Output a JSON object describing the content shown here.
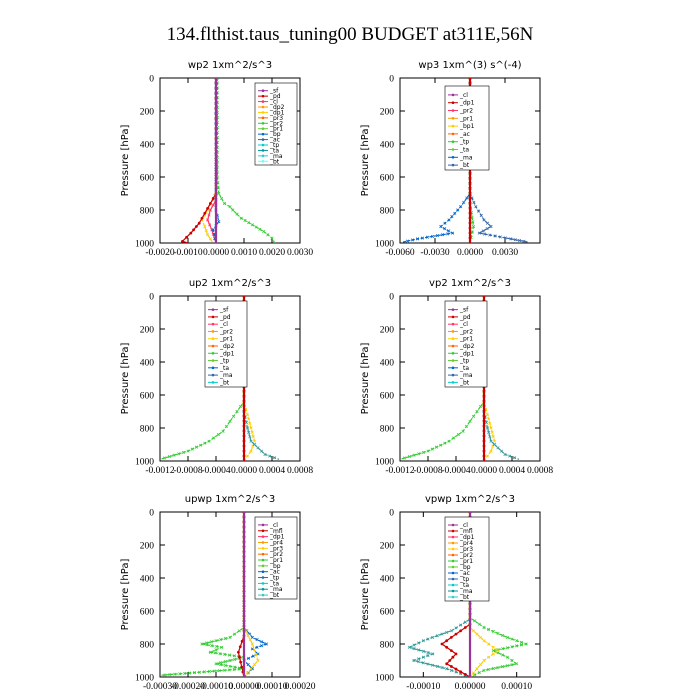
{
  "figure_title": "134.flthist.taus_tuning00  BUDGET at311E,56N",
  "chart_data": [
    {
      "type": "line",
      "title": "wp2   1xm^2/s^3",
      "ylabel": "Pressure  [hPa]",
      "xlim": [
        -0.002,
        0.003
      ],
      "ylim": [
        1000,
        0
      ],
      "x_ticks": [
        "-0.0020",
        "-0.0010",
        "0.0000",
        "0.0010",
        "0.0020",
        "0.0030"
      ],
      "y_ticks": [
        "0",
        "200",
        "400",
        "600",
        "800",
        "1000"
      ],
      "legend": [
        "_sf",
        "_pd",
        "_cl",
        "_dp2",
        "_dp1",
        "_pr3",
        "_pr2",
        "_pr1",
        "_bp",
        "_ac",
        "_tp",
        "_ta",
        "_ma",
        "_bt"
      ],
      "legend_position": "top-right",
      "series": [
        {
          "name": "_bp",
          "color": "#33cc33",
          "marker": "x",
          "points": [
            [
              5e-05,
              0
            ],
            [
              5e-05,
              600
            ],
            [
              0.0001,
              700
            ],
            [
              0.0003,
              760
            ],
            [
              0.0005,
              780
            ],
            [
              0.0006,
              800
            ],
            [
              0.0009,
              850
            ],
            [
              0.0013,
              890
            ],
            [
              0.0017,
              930
            ],
            [
              0.002,
              970
            ],
            [
              0.0021,
              1000
            ]
          ]
        },
        {
          "name": "_pr1",
          "color": "#ffcc00",
          "marker": "x",
          "points": [
            [
              0,
              0
            ],
            [
              0,
              680
            ],
            [
              -0.0001,
              740
            ],
            [
              -0.0003,
              800
            ],
            [
              -0.0005,
              860
            ],
            [
              -0.0004,
              900
            ],
            [
              -0.0003,
              950
            ],
            [
              -0.0001,
              1000
            ]
          ]
        },
        {
          "name": "_dp1",
          "color": "#cc0000",
          "marker": "o",
          "points": [
            [
              0,
              0
            ],
            [
              0,
              700
            ],
            [
              -0.0002,
              760
            ],
            [
              -0.0004,
              820
            ],
            [
              -0.0006,
              880
            ],
            [
              -0.0009,
              940
            ],
            [
              -0.0012,
              990
            ],
            [
              -0.001,
              1000
            ]
          ]
        },
        {
          "name": "_pr3",
          "color": "#ff3366",
          "marker": "+",
          "points": [
            [
              0,
              0
            ],
            [
              0,
              740
            ],
            [
              -0.0002,
              800
            ],
            [
              -0.0003,
              860
            ],
            [
              -0.00015,
              920
            ],
            [
              0,
              1000
            ]
          ]
        },
        {
          "name": "_tp",
          "color": "#0066cc",
          "marker": "x",
          "points": [
            [
              0,
              0
            ],
            [
              0,
              800
            ],
            [
              0.0001,
              870
            ],
            [
              -0.0001,
              920
            ],
            [
              0,
              1000
            ]
          ]
        },
        {
          "name": "_pd",
          "color": "#993399",
          "marker": "none",
          "points": [
            [
              0,
              0
            ],
            [
              0,
              1000
            ]
          ]
        }
      ]
    },
    {
      "type": "line",
      "title": "wp3   1xm^(3) s^(-4)",
      "ylabel": "Pressure  [hPa]",
      "xlim": [
        -0.006,
        0.006
      ],
      "ylim": [
        1000,
        0
      ],
      "x_ticks": [
        "-0.0060",
        "-0.0030",
        "0.0000",
        "0.0030"
      ],
      "y_ticks": [
        "0",
        "200",
        "400",
        "600",
        "800",
        "1000"
      ],
      "legend": [
        "_cl",
        "_dp1",
        "_pr2",
        "_pr1",
        "_bp1",
        "_ac",
        "_tp",
        "_ta",
        "_ma",
        "_bt"
      ],
      "legend_position": "top-right",
      "series": [
        {
          "name": "_tp",
          "color": "#0066cc",
          "marker": "x",
          "points": [
            [
              0,
              0
            ],
            [
              0,
              700
            ],
            [
              -0.0008,
              780
            ],
            [
              -0.0018,
              860
            ],
            [
              -0.0025,
              900
            ],
            [
              -0.0015,
              940
            ],
            [
              -0.0045,
              975
            ],
            [
              -0.0058,
              995
            ]
          ]
        },
        {
          "name": "_ta",
          "color": "#3366aa",
          "marker": "x",
          "points": [
            [
              0,
              700
            ],
            [
              0.0005,
              780
            ],
            [
              0.0012,
              860
            ],
            [
              0.0018,
              900
            ],
            [
              0.0008,
              940
            ],
            [
              0.0035,
              975
            ],
            [
              0.005,
              995
            ]
          ]
        },
        {
          "name": "_ac",
          "color": "#33cc33",
          "marker": "x",
          "points": [
            [
              0,
              0
            ],
            [
              0,
              760
            ],
            [
              0.0003,
              900
            ],
            [
              0,
              1000
            ]
          ]
        },
        {
          "name": "_dp1",
          "color": "#cc0000",
          "marker": "o",
          "points": [
            [
              0,
              0
            ],
            [
              0,
              1000
            ]
          ]
        }
      ]
    },
    {
      "type": "line",
      "title": "up2   1xm^2/s^3",
      "ylabel": "Pressure  [hPa]",
      "xlim": [
        -0.0012,
        0.0008
      ],
      "ylim": [
        1000,
        0
      ],
      "x_ticks": [
        "-0.0012",
        "-0.0008",
        "-0.0004",
        "0.0000",
        "0.0004",
        "0.0008"
      ],
      "y_ticks": [
        "0",
        "200",
        "400",
        "600",
        "800",
        "1000"
      ],
      "legend": [
        "_sf",
        "_pd",
        "_cl",
        "_pr2",
        "_pr1",
        "_dp2",
        "_dp1",
        "_tp",
        "_ta",
        "_ma",
        "_bt"
      ],
      "legend_position": "top-right",
      "series": [
        {
          "name": "_dp1",
          "color": "#33cc33",
          "marker": "x",
          "points": [
            [
              0,
              0
            ],
            [
              0,
              640
            ],
            [
              -0.0001,
              700
            ],
            [
              -0.0002,
              760
            ],
            [
              -0.0003,
              820
            ],
            [
              -0.0005,
              880
            ],
            [
              -0.0008,
              940
            ],
            [
              -0.0012,
              990
            ]
          ]
        },
        {
          "name": "_pr1",
          "color": "#ffcc00",
          "marker": "x",
          "points": [
            [
              0,
              0
            ],
            [
              0,
              650
            ],
            [
              5e-05,
              720
            ],
            [
              0.0001,
              800
            ],
            [
              0.00015,
              880
            ],
            [
              0.0001,
              940
            ],
            [
              0,
              1000
            ]
          ]
        },
        {
          "name": "_tp",
          "color": "#339999",
          "marker": "x",
          "points": [
            [
              0,
              700
            ],
            [
              5e-05,
              800
            ],
            [
              0.0001,
              880
            ],
            [
              0.0003,
              960
            ],
            [
              0.0005,
              990
            ]
          ]
        },
        {
          "name": "_pd",
          "color": "#cc0000",
          "marker": "o",
          "points": [
            [
              0,
              0
            ],
            [
              0,
              1000
            ]
          ]
        }
      ]
    },
    {
      "type": "line",
      "title": "vp2   1xm^2/s^3",
      "ylabel": "Pressure  [hPa]",
      "xlim": [
        -0.0012,
        0.0008
      ],
      "ylim": [
        1000,
        0
      ],
      "x_ticks": [
        "-0.0012",
        "-0.0008",
        "-0.0004",
        "0.0000",
        "0.0004",
        "0.0008"
      ],
      "y_ticks": [
        "0",
        "200",
        "400",
        "600",
        "800",
        "1000"
      ],
      "legend": [
        "_sf",
        "_pd",
        "_cl",
        "_pr2",
        "_pr1",
        "_dp2",
        "_dp1",
        "_tp",
        "_ta",
        "_ma",
        "_bt"
      ],
      "legend_position": "top-right",
      "series": [
        {
          "name": "_dp1",
          "color": "#33cc33",
          "marker": "x",
          "points": [
            [
              0,
              0
            ],
            [
              0,
              640
            ],
            [
              -0.0001,
              700
            ],
            [
              -0.0002,
              760
            ],
            [
              -0.0003,
              820
            ],
            [
              -0.0005,
              880
            ],
            [
              -0.0008,
              940
            ],
            [
              -0.0012,
              990
            ]
          ]
        },
        {
          "name": "_pr1",
          "color": "#ffcc00",
          "marker": "x",
          "points": [
            [
              0,
              0
            ],
            [
              0,
              650
            ],
            [
              5e-05,
              720
            ],
            [
              0.0001,
              800
            ],
            [
              0.00015,
              880
            ],
            [
              0.0001,
              940
            ],
            [
              0,
              1000
            ]
          ]
        },
        {
          "name": "_tp",
          "color": "#339999",
          "marker": "x",
          "points": [
            [
              0,
              700
            ],
            [
              5e-05,
              800
            ],
            [
              0.0001,
              880
            ],
            [
              0.0003,
              960
            ],
            [
              0.0005,
              990
            ]
          ]
        },
        {
          "name": "_pd",
          "color": "#cc0000",
          "marker": "o",
          "points": [
            [
              0,
              0
            ],
            [
              0,
              1000
            ]
          ]
        }
      ]
    },
    {
      "type": "line",
      "title": "upwp   1xm^2/s^3",
      "ylabel": "Pressure  [hPa]",
      "xlim": [
        -0.0003,
        0.0002
      ],
      "ylim": [
        1000,
        0
      ],
      "x_ticks": [
        "-0.00030",
        "-0.00020",
        "-0.00010",
        "0.00000",
        "0.00010",
        "0.00020"
      ],
      "y_ticks": [
        "0",
        "200",
        "400",
        "600",
        "800",
        "1000"
      ],
      "legend": [
        "_cl",
        "_mfl",
        "_dp1",
        "_pr4",
        "_pr3",
        "_pr2",
        "_pr1",
        "_bp",
        "_ac",
        "_tp",
        "_ta",
        "_ma",
        "_bt"
      ],
      "legend_position": "top-right",
      "series": [
        {
          "name": "_bp",
          "color": "#33cc33",
          "marker": "x",
          "points": [
            [
              0,
              0
            ],
            [
              0,
              700
            ],
            [
              -5e-05,
              760
            ],
            [
              -0.00015,
              800
            ],
            [
              -8e-05,
              820
            ],
            [
              -0.00012,
              850
            ],
            [
              0,
              880
            ],
            [
              -0.0001,
              920
            ],
            [
              0,
              950
            ],
            [
              -0.0003,
              990
            ]
          ]
        },
        {
          "name": "_tp",
          "color": "#0066cc",
          "marker": "x",
          "points": [
            [
              0,
              0
            ],
            [
              0,
              700
            ],
            [
              3e-05,
              760
            ],
            [
              8e-05,
              800
            ],
            [
              3e-05,
              830
            ],
            [
              5e-05,
              860
            ],
            [
              0,
              900
            ],
            [
              3e-05,
              950
            ],
            [
              0,
              1000
            ]
          ]
        },
        {
          "name": "_pr1",
          "color": "#ffcc00",
          "marker": "x",
          "points": [
            [
              0,
              0
            ],
            [
              0,
              700
            ],
            [
              3e-05,
              800
            ],
            [
              5e-05,
              900
            ],
            [
              0,
              1000
            ]
          ]
        },
        {
          "name": "_dp1",
          "color": "#cc0000",
          "marker": "o",
          "points": [
            [
              0,
              0
            ],
            [
              0,
              750
            ],
            [
              -2e-05,
              850
            ],
            [
              0,
              1000
            ]
          ]
        },
        {
          "name": "_cl",
          "color": "#993399",
          "marker": "none",
          "points": [
            [
              0,
              0
            ],
            [
              0,
              1000
            ]
          ]
        }
      ]
    },
    {
      "type": "line",
      "title": "vpwp   1xm^2/s^3",
      "ylabel": "Pressure  [hPa]",
      "xlim": [
        -0.00015,
        0.00015
      ],
      "ylim": [
        1000,
        0
      ],
      "x_ticks": [
        "-0.00010",
        "0.00000",
        "0.00010"
      ],
      "y_ticks": [
        "0",
        "200",
        "400",
        "600",
        "800",
        "1000"
      ],
      "legend": [
        "_cl",
        "_mfl",
        "_dp1",
        "_pr4",
        "_pr3",
        "_pr2",
        "_pr1",
        "_bp",
        "_ac",
        "_tp",
        "_ta",
        "_ma",
        "_bt"
      ],
      "legend_position": "top-right",
      "series": [
        {
          "name": "_bp",
          "color": "#33cc33",
          "marker": "x",
          "points": [
            [
              0,
              0
            ],
            [
              0,
              640
            ],
            [
              3e-05,
              700
            ],
            [
              8e-05,
              760
            ],
            [
              0.00012,
              800
            ],
            [
              5e-05,
              840
            ],
            [
              8e-05,
              880
            ],
            [
              0.0001,
              920
            ],
            [
              3e-05,
              960
            ],
            [
              0,
              1000
            ]
          ]
        },
        {
          "name": "_tp",
          "color": "#339999",
          "marker": "x",
          "points": [
            [
              0,
              0
            ],
            [
              0,
              650
            ],
            [
              -4e-05,
              720
            ],
            [
              -0.0001,
              780
            ],
            [
              -0.00013,
              820
            ],
            [
              -8e-05,
              860
            ],
            [
              -0.00012,
              900
            ],
            [
              -5e-05,
              950
            ],
            [
              0,
              1000
            ]
          ]
        },
        {
          "name": "_pr1",
          "color": "#ffcc00",
          "marker": "x",
          "points": [
            [
              0,
              0
            ],
            [
              0,
              700
            ],
            [
              3e-05,
              780
            ],
            [
              6e-05,
              840
            ],
            [
              3e-05,
              900
            ],
            [
              0,
              1000
            ]
          ]
        },
        {
          "name": "_dp1",
          "color": "#cc0000",
          "marker": "o",
          "points": [
            [
              0,
              0
            ],
            [
              0,
              680
            ],
            [
              -3e-05,
              740
            ],
            [
              -6e-05,
              800
            ],
            [
              -3e-05,
              860
            ],
            [
              -5e-05,
              920
            ],
            [
              0,
              1000
            ]
          ]
        },
        {
          "name": "_cl",
          "color": "#993399",
          "marker": "none",
          "points": [
            [
              0,
              0
            ],
            [
              0,
              1000
            ]
          ]
        }
      ]
    }
  ]
}
